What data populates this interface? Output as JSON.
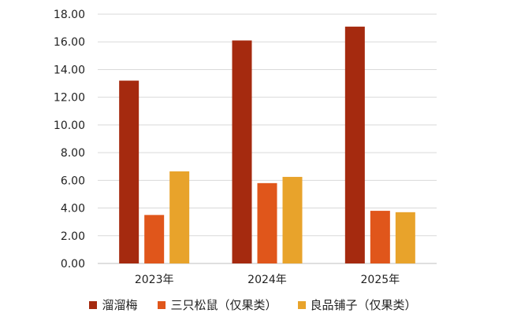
{
  "chart_data": {
    "type": "bar",
    "categories": [
      "2023年",
      "2024年",
      "2025年"
    ],
    "series": [
      {
        "name": "溜溜梅",
        "values": [
          13.2,
          16.1,
          17.1
        ],
        "color": "#A52A0F"
      },
      {
        "name": "三只松鼠（仅果类）",
        "values": [
          3.5,
          5.8,
          3.8
        ],
        "color": "#E0561B"
      },
      {
        "name": "良品铺子（仅果类）",
        "values": [
          6.65,
          6.25,
          3.7
        ],
        "color": "#E8A32B"
      }
    ],
    "yticks": [
      "0.00",
      "2.00",
      "4.00",
      "6.00",
      "8.00",
      "10.00",
      "12.00",
      "14.00",
      "16.00",
      "18.00"
    ],
    "ylim": [
      0,
      18
    ],
    "grid": true,
    "legend_position": "bottom"
  }
}
